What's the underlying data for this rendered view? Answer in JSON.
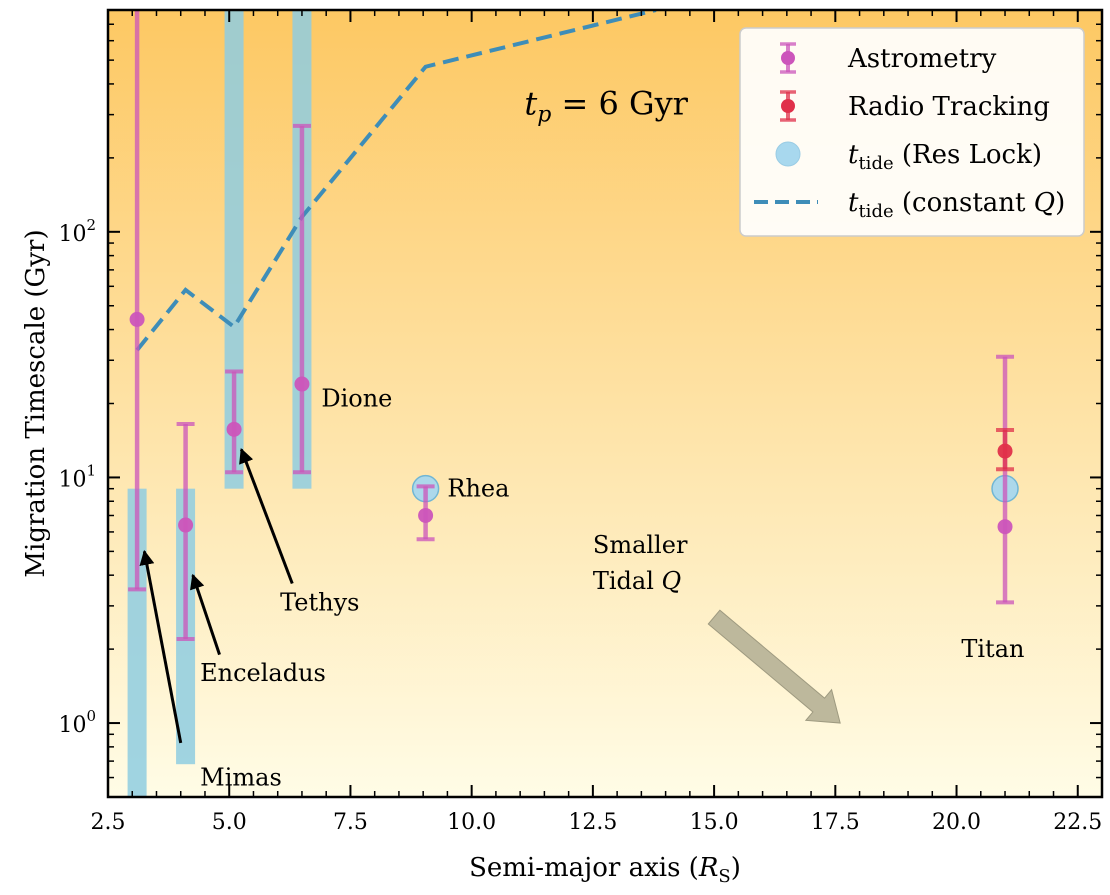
{
  "chart_data": {
    "type": "scatter",
    "xlabel": "Semi-major axis (R_S)",
    "ylabel": "Migration Timescale (Gyr)",
    "xlim": [
      2.5,
      23.0
    ],
    "ylim": [
      0.5,
      800
    ],
    "yscale": "log",
    "x_ticks": [
      2.5,
      5.0,
      7.5,
      10.0,
      12.5,
      15.0,
      17.5,
      20.0,
      22.5
    ],
    "x_tick_labels": [
      "2.5",
      "5.0",
      "7.5",
      "10.0",
      "12.5",
      "15.0",
      "17.5",
      "20.0",
      "22.5"
    ],
    "y_ticks": [
      1,
      10,
      100
    ],
    "y_tick_labels": [
      {
        "base": "10",
        "exp": "0"
      },
      {
        "base": "10",
        "exp": "1"
      },
      {
        "base": "10",
        "exp": "2"
      }
    ],
    "colors": {
      "background_top": "#FDC863",
      "background_bottom": "#FFFCE6",
      "astrometry": "#CC55BB",
      "radio": "#E0304A",
      "res_lock_fill": "#A8D8EE",
      "res_lock_band": "#8FCDE0",
      "constant_q": "#3E8DB8",
      "arrow": "#BDB89C"
    },
    "legend": {
      "position": "upper right",
      "entries": [
        {
          "label": "Astrometry",
          "marker": "astrometry"
        },
        {
          "label": "Radio Tracking",
          "marker": "radio"
        },
        {
          "label": "t_tide (Res Lock)",
          "marker": "res_lock"
        },
        {
          "label": "t_tide (constant Q)",
          "marker": "constant_q"
        }
      ]
    },
    "series": [
      {
        "name": "Astrometry",
        "points": [
          {
            "moon": "Mimas",
            "x": 3.1,
            "y": 44,
            "ylow": 3.5,
            "yhigh": 800
          },
          {
            "moon": "Enceladus",
            "x": 4.1,
            "y": 6.4,
            "ylow": 2.2,
            "yhigh": 16.5
          },
          {
            "moon": "Tethys",
            "x": 5.1,
            "y": 15.7,
            "ylow": 10.5,
            "yhigh": 27
          },
          {
            "moon": "Dione",
            "x": 6.5,
            "y": 24,
            "ylow": 10.5,
            "yhigh": 270
          },
          {
            "moon": "Rhea",
            "x": 9.05,
            "y": 7.0,
            "ylow": 5.6,
            "yhigh": 9.2
          },
          {
            "moon": "Titan",
            "x": 21.0,
            "y": 6.3,
            "ylow": 3.1,
            "yhigh": 31
          }
        ]
      },
      {
        "name": "Radio Tracking",
        "points": [
          {
            "moon": "Titan",
            "x": 21.0,
            "y": 12.8,
            "ylow": 10.8,
            "yhigh": 15.6
          }
        ]
      },
      {
        "name": "t_tide (Res Lock)",
        "bands": [
          {
            "x": 3.1,
            "ylow": 0.5,
            "yhigh": 9.0
          },
          {
            "x": 4.1,
            "ylow": 0.68,
            "yhigh": 9.0
          },
          {
            "x": 5.1,
            "ylow": 9.0,
            "yhigh": 800
          },
          {
            "x": 6.5,
            "ylow": 9.0,
            "yhigh": 800
          }
        ],
        "points": [
          {
            "moon": "Rhea",
            "x": 9.05,
            "y": 9.0
          },
          {
            "moon": "Titan",
            "x": 21.0,
            "y": 9.0
          }
        ]
      },
      {
        "name": "t_tide (constant Q)",
        "points": [
          {
            "x": 3.1,
            "y": 33
          },
          {
            "x": 4.1,
            "y": 58
          },
          {
            "x": 5.1,
            "y": 41
          },
          {
            "x": 6.5,
            "y": 115
          },
          {
            "x": 9.05,
            "y": 470
          },
          {
            "x": 13.8,
            "y": 800
          }
        ]
      }
    ],
    "annotations": {
      "tp": {
        "prefix": "t",
        "sub": "p",
        "suffix": " = 6 Gyr",
        "x": 11.5,
        "y": 300
      },
      "moons": [
        {
          "name": "Mimas",
          "text": "Mimas",
          "text_x": 4.4,
          "text_y": 0.6,
          "arrow_from": [
            4.0,
            0.83
          ],
          "arrow_to": [
            3.25,
            5.0
          ]
        },
        {
          "name": "Enceladus",
          "text": "Enceladus",
          "text_x": 4.4,
          "text_y": 1.6,
          "arrow_from": [
            4.8,
            1.9
          ],
          "arrow_to": [
            4.25,
            4.0
          ]
        },
        {
          "name": "Tethys",
          "text": "Tethys",
          "text_x": 6.05,
          "text_y": 3.1,
          "arrow_from": [
            6.3,
            3.7
          ],
          "arrow_to": [
            5.25,
            13.0
          ]
        },
        {
          "name": "Dione",
          "text": "Dione",
          "text_x": 6.9,
          "text_y": 21
        },
        {
          "name": "Rhea",
          "text": "Rhea",
          "text_x": 9.5,
          "text_y": 9.0
        },
        {
          "name": "Titan",
          "text": "Titan",
          "text_x": 20.1,
          "text_y": 2.0
        }
      ],
      "smaller_q": {
        "line1": "Smaller",
        "line2_prefix": "Tidal ",
        "line2_italic": "Q",
        "text_x": 12.5,
        "text_y": 5.3,
        "arrow_from": [
          15.0,
          2.7
        ],
        "arrow_to": [
          17.6,
          1.0
        ]
      }
    }
  }
}
